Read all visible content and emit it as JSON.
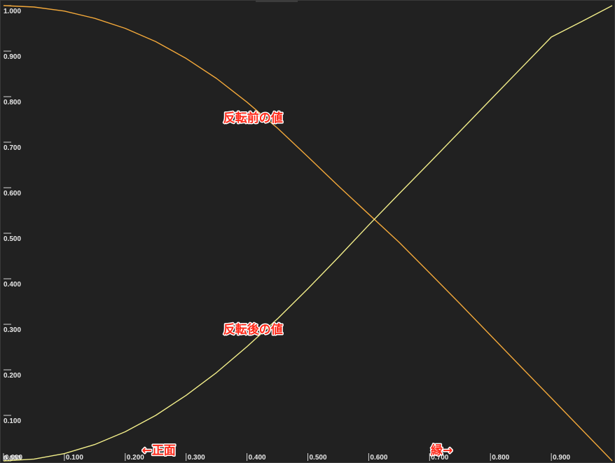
{
  "chart_data": {
    "type": "line",
    "xlim": [
      0,
      1
    ],
    "ylim": [
      0,
      1
    ],
    "x_ticks": [
      "0.000",
      "0.100",
      "0.200",
      "0.300",
      "0.400",
      "0.500",
      "0.600",
      "0.700",
      "0.800",
      "0.900"
    ],
    "y_ticks": [
      "0.000",
      "0.100",
      "0.200",
      "0.300",
      "0.400",
      "0.500",
      "0.600",
      "0.700",
      "0.800",
      "0.900",
      "1.000"
    ],
    "series": [
      {
        "color": "#f4a93a",
        "x": [
          0.0,
          0.05,
          0.1,
          0.15,
          0.2,
          0.25,
          0.3,
          0.35,
          0.4,
          0.45,
          0.5,
          0.55,
          0.6,
          0.65,
          0.7,
          0.75,
          0.8,
          0.85,
          0.9,
          0.95,
          1.0
        ],
        "y": [
          1.0,
          0.997,
          0.988,
          0.972,
          0.95,
          0.921,
          0.884,
          0.84,
          0.788,
          0.731,
          0.668,
          0.604,
          0.542,
          0.48,
          0.413,
          0.345,
          0.276,
          0.207,
          0.138,
          0.069,
          0.0
        ]
      },
      {
        "color": "#f3ef8a",
        "x": [
          0.0,
          0.05,
          0.1,
          0.15,
          0.2,
          0.25,
          0.3,
          0.35,
          0.4,
          0.45,
          0.5,
          0.55,
          0.6,
          0.65,
          0.7,
          0.75,
          0.8,
          0.85,
          0.9,
          0.95,
          1.0
        ],
        "y": [
          0.0,
          0.004,
          0.016,
          0.036,
          0.064,
          0.1,
          0.144,
          0.194,
          0.251,
          0.312,
          0.378,
          0.447,
          0.518,
          0.587,
          0.655,
          0.724,
          0.793,
          0.862,
          0.931,
          0.965,
          1.0
        ]
      }
    ],
    "annotations": [
      {
        "text": "反転前の値",
        "x": 0.41,
        "y": 0.745
      },
      {
        "text": "反転後の値",
        "x": 0.41,
        "y": 0.28
      },
      {
        "text": "←正面",
        "x": 0.255,
        "y": 0.015
      },
      {
        "text": "縁→",
        "x": 0.72,
        "y": 0.015
      }
    ]
  }
}
